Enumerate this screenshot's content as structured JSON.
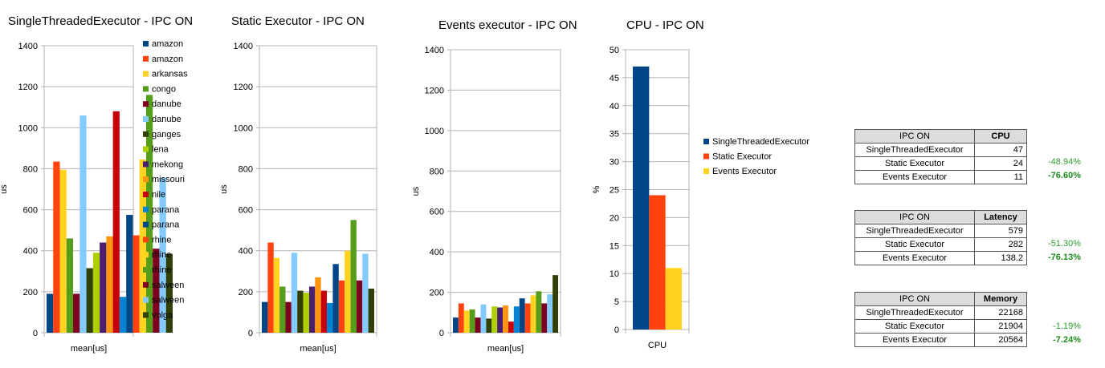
{
  "chart_data": [
    {
      "type": "bar",
      "title": "SingleThreadedExecutor - IPC ON",
      "xlabel": "mean[us]",
      "ylabel": "us",
      "ylim": [
        0,
        1400
      ],
      "yticks": [
        0,
        200,
        400,
        600,
        800,
        1000,
        1200,
        1400
      ],
      "grid": true,
      "legend": "right",
      "series": [
        {
          "name": "amazon",
          "color": "#004586",
          "values": [
            190
          ]
        },
        {
          "name": "amazon",
          "color": "#ff420e",
          "values": [
            835
          ]
        },
        {
          "name": "arkansas",
          "color": "#ffd320",
          "values": [
            795
          ]
        },
        {
          "name": "congo",
          "color": "#579d1c",
          "values": [
            460
          ]
        },
        {
          "name": "danube",
          "color": "#7e0021",
          "values": [
            190
          ]
        },
        {
          "name": "danube",
          "color": "#83caff",
          "values": [
            1060
          ]
        },
        {
          "name": "ganges",
          "color": "#314004",
          "values": [
            315
          ]
        },
        {
          "name": "lena",
          "color": "#aecf00",
          "values": [
            390
          ]
        },
        {
          "name": "mekong",
          "color": "#4b1f6f",
          "values": [
            440
          ]
        },
        {
          "name": "missouri",
          "color": "#ff950e",
          "values": [
            470
          ]
        },
        {
          "name": "nile",
          "color": "#c5000b",
          "values": [
            1080
          ]
        },
        {
          "name": "parana",
          "color": "#0084d1",
          "values": [
            175
          ]
        },
        {
          "name": "parana",
          "color": "#004586",
          "values": [
            575
          ]
        },
        {
          "name": "rhine",
          "color": "#ff420e",
          "values": [
            475
          ]
        },
        {
          "name": "rhine",
          "color": "#ffd320",
          "values": [
            845
          ]
        },
        {
          "name": "rhine",
          "color": "#579d1c",
          "values": [
            1160
          ]
        },
        {
          "name": "salween",
          "color": "#7e0021",
          "values": [
            410
          ]
        },
        {
          "name": "salween",
          "color": "#83caff",
          "values": [
            755
          ]
        },
        {
          "name": "volga",
          "color": "#314004",
          "values": [
            385
          ]
        }
      ]
    },
    {
      "type": "bar",
      "title": "Static Executor - IPC ON",
      "xlabel": "mean[us]",
      "ylabel": "us",
      "ylim": [
        0,
        1400
      ],
      "yticks": [
        0,
        200,
        400,
        600,
        800,
        1000,
        1200,
        1400
      ],
      "grid": true,
      "series": [
        {
          "name": "amazon",
          "color": "#004586",
          "values": [
            150
          ]
        },
        {
          "name": "amazon",
          "color": "#ff420e",
          "values": [
            440
          ]
        },
        {
          "name": "arkansas",
          "color": "#ffd320",
          "values": [
            365
          ]
        },
        {
          "name": "congo",
          "color": "#579d1c",
          "values": [
            225
          ]
        },
        {
          "name": "danube",
          "color": "#7e0021",
          "values": [
            150
          ]
        },
        {
          "name": "danube",
          "color": "#83caff",
          "values": [
            390
          ]
        },
        {
          "name": "ganges",
          "color": "#314004",
          "values": [
            205
          ]
        },
        {
          "name": "lena",
          "color": "#aecf00",
          "values": [
            195
          ]
        },
        {
          "name": "mekong",
          "color": "#4b1f6f",
          "values": [
            225
          ]
        },
        {
          "name": "missouri",
          "color": "#ff950e",
          "values": [
            270
          ]
        },
        {
          "name": "nile",
          "color": "#c5000b",
          "values": [
            205
          ]
        },
        {
          "name": "parana",
          "color": "#0084d1",
          "values": [
            145
          ]
        },
        {
          "name": "parana",
          "color": "#004586",
          "values": [
            335
          ]
        },
        {
          "name": "rhine",
          "color": "#ff420e",
          "values": [
            255
          ]
        },
        {
          "name": "rhine",
          "color": "#ffd320",
          "values": [
            400
          ]
        },
        {
          "name": "rhine",
          "color": "#579d1c",
          "values": [
            550
          ]
        },
        {
          "name": "salween",
          "color": "#7e0021",
          "values": [
            255
          ]
        },
        {
          "name": "salween",
          "color": "#83caff",
          "values": [
            385
          ]
        },
        {
          "name": "volga",
          "color": "#314004",
          "values": [
            215
          ]
        }
      ]
    },
    {
      "type": "bar",
      "title": "Events executor - IPC ON",
      "xlabel": "mean[us]",
      "ylabel": "us",
      "ylim": [
        0,
        1400
      ],
      "yticks": [
        0,
        200,
        400,
        600,
        800,
        1000,
        1200,
        1400
      ],
      "grid": true,
      "series": [
        {
          "name": "amazon",
          "color": "#004586",
          "values": [
            75
          ]
        },
        {
          "name": "amazon",
          "color": "#ff420e",
          "values": [
            145
          ]
        },
        {
          "name": "arkansas",
          "color": "#ffd320",
          "values": [
            110
          ]
        },
        {
          "name": "congo",
          "color": "#579d1c",
          "values": [
            115
          ]
        },
        {
          "name": "danube",
          "color": "#7e0021",
          "values": [
            75
          ]
        },
        {
          "name": "danube",
          "color": "#83caff",
          "values": [
            140
          ]
        },
        {
          "name": "ganges",
          "color": "#314004",
          "values": [
            70
          ]
        },
        {
          "name": "lena",
          "color": "#aecf00",
          "values": [
            130
          ]
        },
        {
          "name": "mekong",
          "color": "#4b1f6f",
          "values": [
            125
          ]
        },
        {
          "name": "missouri",
          "color": "#ff950e",
          "values": [
            135
          ]
        },
        {
          "name": "nile",
          "color": "#c5000b",
          "values": [
            55
          ]
        },
        {
          "name": "parana",
          "color": "#0084d1",
          "values": [
            130
          ]
        },
        {
          "name": "parana",
          "color": "#004586",
          "values": [
            170
          ]
        },
        {
          "name": "rhine",
          "color": "#ff420e",
          "values": [
            145
          ]
        },
        {
          "name": "rhine",
          "color": "#ffd320",
          "values": [
            185
          ]
        },
        {
          "name": "rhine",
          "color": "#579d1c",
          "values": [
            205
          ]
        },
        {
          "name": "salween",
          "color": "#7e0021",
          "values": [
            145
          ]
        },
        {
          "name": "salween",
          "color": "#83caff",
          "values": [
            190
          ]
        },
        {
          "name": "volga",
          "color": "#314004",
          "values": [
            285
          ]
        }
      ]
    },
    {
      "type": "bar",
      "title": "CPU - IPC ON",
      "xlabel": "CPU",
      "ylabel": "%",
      "ylim": [
        0,
        50
      ],
      "yticks": [
        0,
        5,
        10,
        15,
        20,
        25,
        30,
        35,
        40,
        45,
        50
      ],
      "grid": true,
      "legend": "right",
      "series": [
        {
          "name": "SingleThreadedExecutor",
          "color": "#004586",
          "values": [
            47
          ]
        },
        {
          "name": "Static Executor",
          "color": "#ff420e",
          "values": [
            24
          ]
        },
        {
          "name": "Events Executor",
          "color": "#ffd320",
          "values": [
            11
          ]
        }
      ]
    }
  ],
  "tables": [
    {
      "header": [
        "IPC ON",
        "CPU"
      ],
      "rows": [
        {
          "label": "SingleThreadedExecutor",
          "value": "47",
          "change": ""
        },
        {
          "label": "Static Executor",
          "value": "24",
          "change": "-48.94%"
        },
        {
          "label": "Events Executor",
          "value": "11",
          "change": "-76.60%"
        }
      ]
    },
    {
      "header": [
        "IPC ON",
        "Latency"
      ],
      "rows": [
        {
          "label": "SingleThreadedExecutor",
          "value": "579",
          "change": ""
        },
        {
          "label": "Static Executor",
          "value": "282",
          "change": "-51.30%"
        },
        {
          "label": "Events Executor",
          "value": "138.2",
          "change": "-76.13%"
        }
      ]
    },
    {
      "header": [
        "IPC ON",
        "Memory"
      ],
      "rows": [
        {
          "label": "SingleThreadedExecutor",
          "value": "22168",
          "change": ""
        },
        {
          "label": "Static Executor",
          "value": "21904",
          "change": "-1.19%"
        },
        {
          "label": "Events Executor",
          "value": "20564",
          "change": "-7.24%"
        }
      ]
    }
  ]
}
